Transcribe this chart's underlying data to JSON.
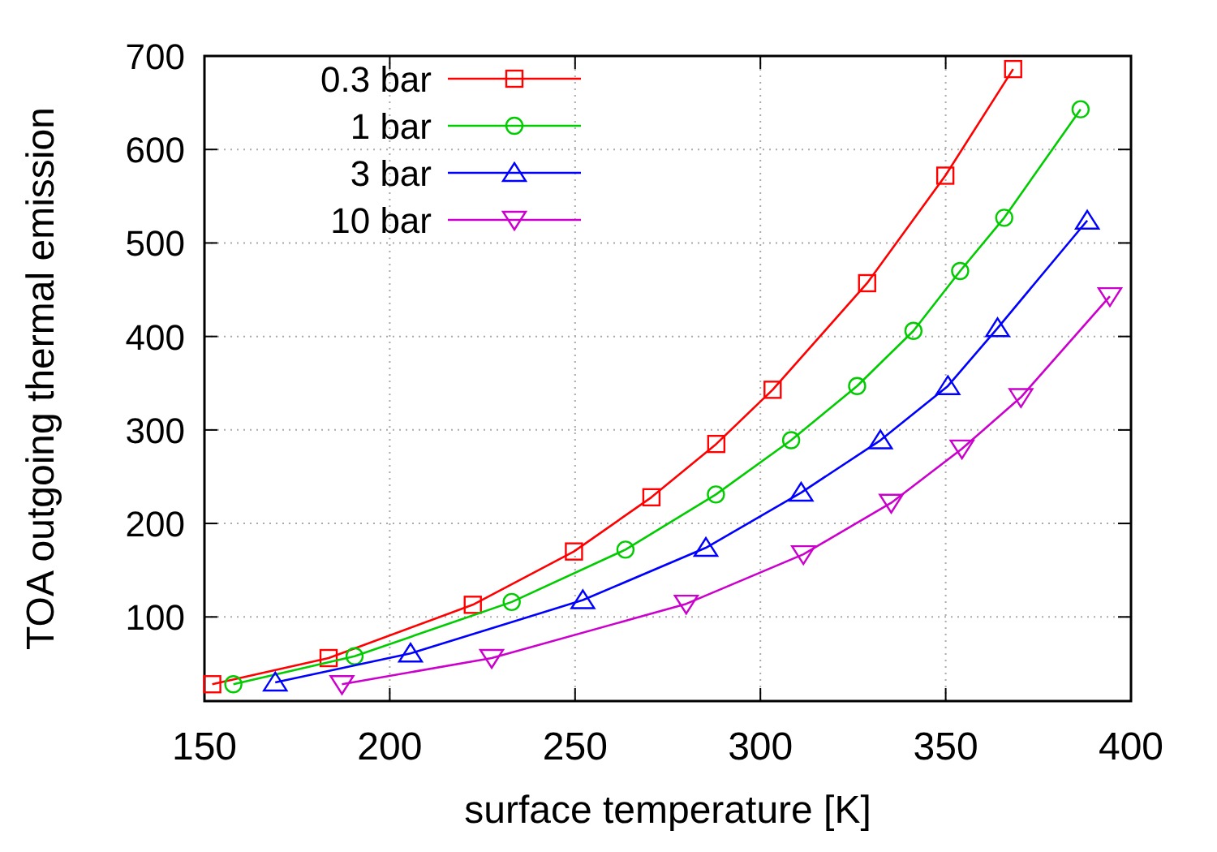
{
  "chart_data": {
    "type": "line",
    "xlabel": "surface temperature [K]",
    "ylabel": "TOA outgoing thermal emission",
    "xlim": [
      150,
      400
    ],
    "xticks": [
      150,
      200,
      250,
      300,
      350,
      400
    ],
    "ylim": [
      10,
      700
    ],
    "yticks": [
      100,
      200,
      300,
      400,
      500,
      600,
      700
    ],
    "grid": true,
    "legend": "top left",
    "line_style": "solid",
    "series": [
      {
        "name": "0.3 bar",
        "color": "#ff0000",
        "marker": "square",
        "x": [
          152.1,
          183.5,
          222.4,
          249.7,
          270.6,
          288.1,
          303.3,
          328.8,
          349.9,
          368.2
        ],
        "values": [
          28,
          56,
          113,
          170,
          228,
          285,
          343,
          457,
          572,
          686
        ]
      },
      {
        "name": "1 bar",
        "color": "#00cc00",
        "marker": "circle",
        "x": [
          157.8,
          190.5,
          232.9,
          263.6,
          288,
          308.3,
          326.1,
          341.3,
          353.9,
          365.8,
          386.4
        ],
        "values": [
          28,
          58,
          116,
          172,
          231,
          289,
          347,
          406,
          470,
          527,
          643
        ]
      },
      {
        "name": "3 bar",
        "color": "#0000ff",
        "marker": "triangle",
        "x": [
          169.1,
          205.6,
          252.1,
          285.3,
          311,
          332.4,
          350.6,
          364,
          388.2
        ],
        "values": [
          30,
          61,
          118,
          174,
          233,
          289,
          347,
          409,
          524
        ]
      },
      {
        "name": "10 bar",
        "color": "#cc00cc",
        "marker": "triangle-down",
        "x": [
          187.1,
          227.5,
          280,
          311.6,
          335.3,
          354.4,
          370.3,
          394.3
        ],
        "values": [
          28,
          56,
          114,
          167,
          222,
          280,
          335,
          443
        ]
      }
    ]
  }
}
